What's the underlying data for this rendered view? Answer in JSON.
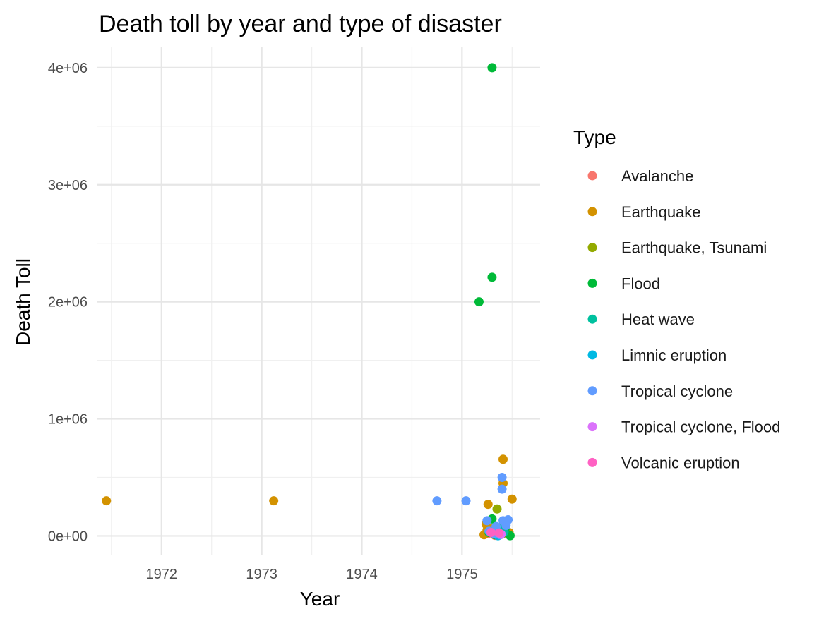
{
  "chart_data": {
    "type": "scatter",
    "title": "Death toll by year and type of disaster",
    "xlabel": "Year",
    "ylabel": "Death Toll",
    "xlim": [
      1971.36,
      1975.78
    ],
    "ylim": [
      -160000,
      4180000
    ],
    "x_ticks": [
      1972,
      1973,
      1974,
      1975
    ],
    "y_ticks": [
      0,
      1000000,
      2000000,
      3000000,
      4000000
    ],
    "y_tick_labels": [
      "0e+00",
      "1e+06",
      "2e+06",
      "3e+06",
      "4e+06"
    ],
    "grid": true,
    "legend": {
      "title": "Type",
      "position": "right",
      "entries": [
        {
          "name": "Avalanche",
          "color": "#F8766D"
        },
        {
          "name": "Earthquake",
          "color": "#D39200"
        },
        {
          "name": "Earthquake, Tsunami",
          "color": "#93AA00"
        },
        {
          "name": "Flood",
          "color": "#00BA38"
        },
        {
          "name": "Heat wave",
          "color": "#00C19F"
        },
        {
          "name": "Limnic eruption",
          "color": "#00B9E3"
        },
        {
          "name": "Tropical cyclone",
          "color": "#619CFF"
        },
        {
          "name": "Tropical cyclone, Flood",
          "color": "#DB72FB"
        },
        {
          "name": "Volcanic eruption",
          "color": "#FF61C3"
        }
      ]
    },
    "series": [
      {
        "name": "Avalanche",
        "color": "#F8766D",
        "points": [
          {
            "x": 1975.26,
            "y": 20000
          },
          {
            "x": 1975.33,
            "y": 5000
          },
          {
            "x": 1975.38,
            "y": 10000
          }
        ]
      },
      {
        "name": "Earthquake",
        "color": "#D39200",
        "points": [
          {
            "x": 1971.45,
            "y": 300000
          },
          {
            "x": 1973.12,
            "y": 300000
          },
          {
            "x": 1975.26,
            "y": 270000
          },
          {
            "x": 1975.24,
            "y": 100000
          },
          {
            "x": 1975.22,
            "y": 10000
          },
          {
            "x": 1975.25,
            "y": 50000
          },
          {
            "x": 1975.28,
            "y": 30000
          },
          {
            "x": 1975.3,
            "y": 60000
          },
          {
            "x": 1975.33,
            "y": 20000
          },
          {
            "x": 1975.36,
            "y": 40000
          },
          {
            "x": 1975.41,
            "y": 655000
          },
          {
            "x": 1975.41,
            "y": 450000
          },
          {
            "x": 1975.5,
            "y": 315000
          },
          {
            "x": 1975.44,
            "y": 25000
          },
          {
            "x": 1975.47,
            "y": 30000
          },
          {
            "x": 1975.4,
            "y": 15000
          }
        ]
      },
      {
        "name": "Earthquake, Tsunami",
        "color": "#93AA00",
        "points": [
          {
            "x": 1975.35,
            "y": 230000
          },
          {
            "x": 1975.3,
            "y": 40000
          }
        ]
      },
      {
        "name": "Flood",
        "color": "#00BA38",
        "points": [
          {
            "x": 1975.3,
            "y": 4000000
          },
          {
            "x": 1975.3,
            "y": 2210000
          },
          {
            "x": 1975.17,
            "y": 2000000
          },
          {
            "x": 1975.3,
            "y": 145000
          },
          {
            "x": 1975.27,
            "y": 30000
          },
          {
            "x": 1975.35,
            "y": 50000
          },
          {
            "x": 1975.4,
            "y": 20000
          },
          {
            "x": 1975.48,
            "y": 2000
          },
          {
            "x": 1975.33,
            "y": 10000
          },
          {
            "x": 1975.43,
            "y": 60000
          }
        ]
      },
      {
        "name": "Heat wave",
        "color": "#00C19F",
        "points": [
          {
            "x": 1975.37,
            "y": 70000
          },
          {
            "x": 1975.42,
            "y": 35000
          }
        ]
      },
      {
        "name": "Limnic eruption",
        "color": "#00B9E3",
        "points": [
          {
            "x": 1975.36,
            "y": 1700
          }
        ]
      },
      {
        "name": "Tropical cyclone",
        "color": "#619CFF",
        "points": [
          {
            "x": 1974.75,
            "y": 300000
          },
          {
            "x": 1975.04,
            "y": 300000
          },
          {
            "x": 1975.4,
            "y": 500000
          },
          {
            "x": 1975.4,
            "y": 400000
          },
          {
            "x": 1975.41,
            "y": 130000
          },
          {
            "x": 1975.46,
            "y": 138000
          },
          {
            "x": 1975.25,
            "y": 130000
          },
          {
            "x": 1975.27,
            "y": 40000
          },
          {
            "x": 1975.32,
            "y": 20000
          },
          {
            "x": 1975.34,
            "y": 80000
          },
          {
            "x": 1975.38,
            "y": 10000
          },
          {
            "x": 1975.44,
            "y": 90000
          }
        ]
      },
      {
        "name": "Tropical cyclone, Flood",
        "color": "#DB72FB",
        "points": [
          {
            "x": 1975.39,
            "y": 15000
          }
        ]
      },
      {
        "name": "Volcanic eruption",
        "color": "#FF61C3",
        "points": [
          {
            "x": 1975.29,
            "y": 30000
          },
          {
            "x": 1975.37,
            "y": 25000
          }
        ]
      }
    ]
  }
}
